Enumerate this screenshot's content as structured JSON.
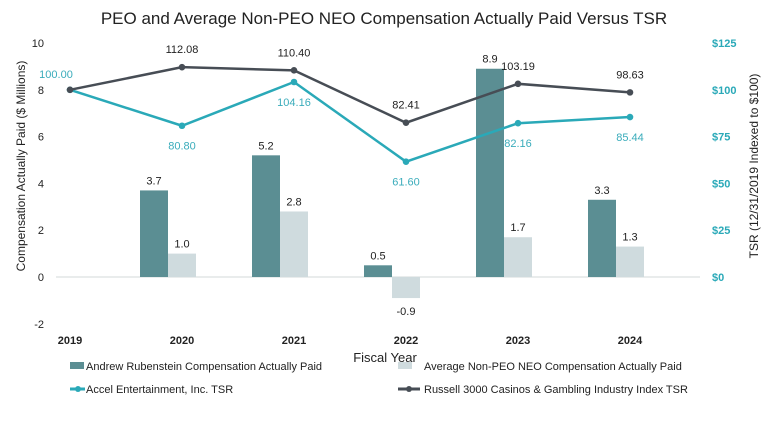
{
  "chart_data": {
    "type": "bar+line",
    "title": "PEO and Average Non-PEO NEO Compensation Actually Paid Versus TSR",
    "xlabel": "Fiscal Year",
    "ylabel": "Compensation Actually Paid ($ Millions)",
    "y2label": "TSR (12/31/2019 Indexed to $100)",
    "categories": [
      "2019",
      "2020",
      "2021",
      "2022",
      "2023",
      "2024"
    ],
    "ylim": [
      -2,
      10
    ],
    "yticks": [
      "-2",
      "0",
      "2",
      "4",
      "6",
      "8",
      "10"
    ],
    "y2lim": [
      0,
      125
    ],
    "y2ticks": [
      "$0",
      "$25",
      "$50",
      "$75",
      "$100",
      "$125"
    ],
    "bar_series": [
      {
        "name": "Andrew Rubenstein Compensation Actually Paid",
        "color": "#5b8e93",
        "values": [
          null,
          3.7,
          5.2,
          0.5,
          8.9,
          3.3
        ],
        "labels": [
          "",
          "3.7",
          "5.2",
          "0.5",
          "8.9",
          "3.3"
        ]
      },
      {
        "name": "Average Non-PEO NEO Compensation Actually Paid",
        "color": "#cfdbde",
        "values": [
          null,
          1.0,
          2.8,
          -0.9,
          1.7,
          1.3
        ],
        "labels": [
          "",
          "1.0",
          "2.8",
          "-0.9",
          "1.7",
          "1.3"
        ]
      }
    ],
    "line_series": [
      {
        "name": "Accel Entertainment, Inc. TSR",
        "color": "#2aa9b8",
        "values": [
          100.0,
          80.8,
          104.16,
          61.6,
          82.16,
          85.44
        ],
        "labels": [
          "100.00",
          "80.80",
          "104.16",
          "61.60",
          "82.16",
          "85.44"
        ]
      },
      {
        "name": "Russell 3000 Casinos & Gambling Industry Index TSR",
        "color": "#474d55",
        "values": [
          100.0,
          112.08,
          110.4,
          82.41,
          103.19,
          98.63
        ],
        "labels": [
          "",
          "112.08",
          "110.40",
          "82.41",
          "103.19",
          "98.63"
        ]
      }
    ],
    "legend": "bottom",
    "grid": false
  }
}
